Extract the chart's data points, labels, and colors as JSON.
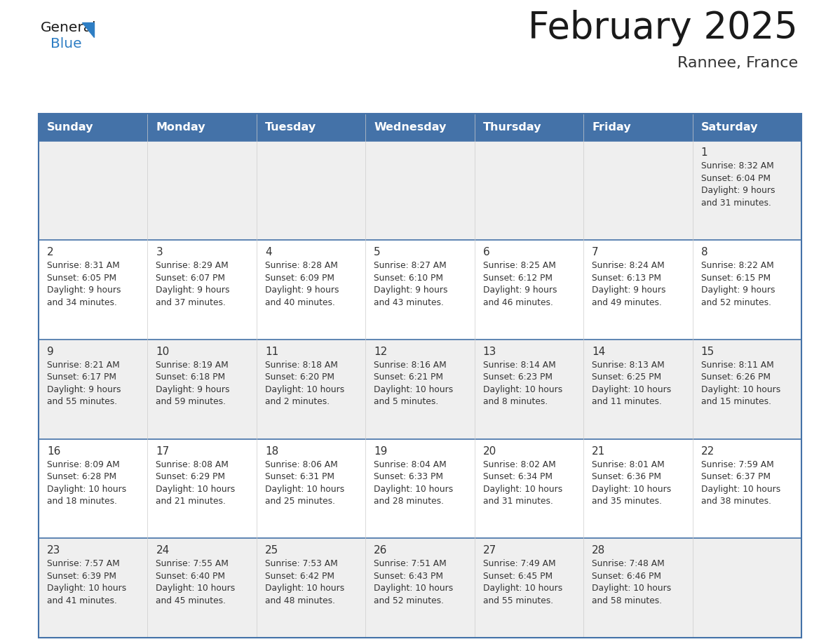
{
  "title": "February 2025",
  "subtitle": "Rannee, France",
  "header_bg": "#4472A8",
  "header_text_color": "#FFFFFF",
  "days_of_week": [
    "Sunday",
    "Monday",
    "Tuesday",
    "Wednesday",
    "Thursday",
    "Friday",
    "Saturday"
  ],
  "cell_bg_even": "#EFEFEF",
  "cell_bg_odd": "#FFFFFF",
  "cell_text_color": "#333333",
  "border_color": "#4472A8",
  "divider_color": "#4472A8",
  "title_color": "#1a1a1a",
  "subtitle_color": "#333333",
  "logo_general_color": "#1a1a1a",
  "logo_blue_color": "#2E7EC4",
  "weeks": [
    [
      {
        "day": null,
        "info": null
      },
      {
        "day": null,
        "info": null
      },
      {
        "day": null,
        "info": null
      },
      {
        "day": null,
        "info": null
      },
      {
        "day": null,
        "info": null
      },
      {
        "day": null,
        "info": null
      },
      {
        "day": 1,
        "info": "Sunrise: 8:32 AM\nSunset: 6:04 PM\nDaylight: 9 hours\nand 31 minutes."
      }
    ],
    [
      {
        "day": 2,
        "info": "Sunrise: 8:31 AM\nSunset: 6:05 PM\nDaylight: 9 hours\nand 34 minutes."
      },
      {
        "day": 3,
        "info": "Sunrise: 8:29 AM\nSunset: 6:07 PM\nDaylight: 9 hours\nand 37 minutes."
      },
      {
        "day": 4,
        "info": "Sunrise: 8:28 AM\nSunset: 6:09 PM\nDaylight: 9 hours\nand 40 minutes."
      },
      {
        "day": 5,
        "info": "Sunrise: 8:27 AM\nSunset: 6:10 PM\nDaylight: 9 hours\nand 43 minutes."
      },
      {
        "day": 6,
        "info": "Sunrise: 8:25 AM\nSunset: 6:12 PM\nDaylight: 9 hours\nand 46 minutes."
      },
      {
        "day": 7,
        "info": "Sunrise: 8:24 AM\nSunset: 6:13 PM\nDaylight: 9 hours\nand 49 minutes."
      },
      {
        "day": 8,
        "info": "Sunrise: 8:22 AM\nSunset: 6:15 PM\nDaylight: 9 hours\nand 52 minutes."
      }
    ],
    [
      {
        "day": 9,
        "info": "Sunrise: 8:21 AM\nSunset: 6:17 PM\nDaylight: 9 hours\nand 55 minutes."
      },
      {
        "day": 10,
        "info": "Sunrise: 8:19 AM\nSunset: 6:18 PM\nDaylight: 9 hours\nand 59 minutes."
      },
      {
        "day": 11,
        "info": "Sunrise: 8:18 AM\nSunset: 6:20 PM\nDaylight: 10 hours\nand 2 minutes."
      },
      {
        "day": 12,
        "info": "Sunrise: 8:16 AM\nSunset: 6:21 PM\nDaylight: 10 hours\nand 5 minutes."
      },
      {
        "day": 13,
        "info": "Sunrise: 8:14 AM\nSunset: 6:23 PM\nDaylight: 10 hours\nand 8 minutes."
      },
      {
        "day": 14,
        "info": "Sunrise: 8:13 AM\nSunset: 6:25 PM\nDaylight: 10 hours\nand 11 minutes."
      },
      {
        "day": 15,
        "info": "Sunrise: 8:11 AM\nSunset: 6:26 PM\nDaylight: 10 hours\nand 15 minutes."
      }
    ],
    [
      {
        "day": 16,
        "info": "Sunrise: 8:09 AM\nSunset: 6:28 PM\nDaylight: 10 hours\nand 18 minutes."
      },
      {
        "day": 17,
        "info": "Sunrise: 8:08 AM\nSunset: 6:29 PM\nDaylight: 10 hours\nand 21 minutes."
      },
      {
        "day": 18,
        "info": "Sunrise: 8:06 AM\nSunset: 6:31 PM\nDaylight: 10 hours\nand 25 minutes."
      },
      {
        "day": 19,
        "info": "Sunrise: 8:04 AM\nSunset: 6:33 PM\nDaylight: 10 hours\nand 28 minutes."
      },
      {
        "day": 20,
        "info": "Sunrise: 8:02 AM\nSunset: 6:34 PM\nDaylight: 10 hours\nand 31 minutes."
      },
      {
        "day": 21,
        "info": "Sunrise: 8:01 AM\nSunset: 6:36 PM\nDaylight: 10 hours\nand 35 minutes."
      },
      {
        "day": 22,
        "info": "Sunrise: 7:59 AM\nSunset: 6:37 PM\nDaylight: 10 hours\nand 38 minutes."
      }
    ],
    [
      {
        "day": 23,
        "info": "Sunrise: 7:57 AM\nSunset: 6:39 PM\nDaylight: 10 hours\nand 41 minutes."
      },
      {
        "day": 24,
        "info": "Sunrise: 7:55 AM\nSunset: 6:40 PM\nDaylight: 10 hours\nand 45 minutes."
      },
      {
        "day": 25,
        "info": "Sunrise: 7:53 AM\nSunset: 6:42 PM\nDaylight: 10 hours\nand 48 minutes."
      },
      {
        "day": 26,
        "info": "Sunrise: 7:51 AM\nSunset: 6:43 PM\nDaylight: 10 hours\nand 52 minutes."
      },
      {
        "day": 27,
        "info": "Sunrise: 7:49 AM\nSunset: 6:45 PM\nDaylight: 10 hours\nand 55 minutes."
      },
      {
        "day": 28,
        "info": "Sunrise: 7:48 AM\nSunset: 6:46 PM\nDaylight: 10 hours\nand 58 minutes."
      },
      {
        "day": null,
        "info": null
      }
    ]
  ]
}
